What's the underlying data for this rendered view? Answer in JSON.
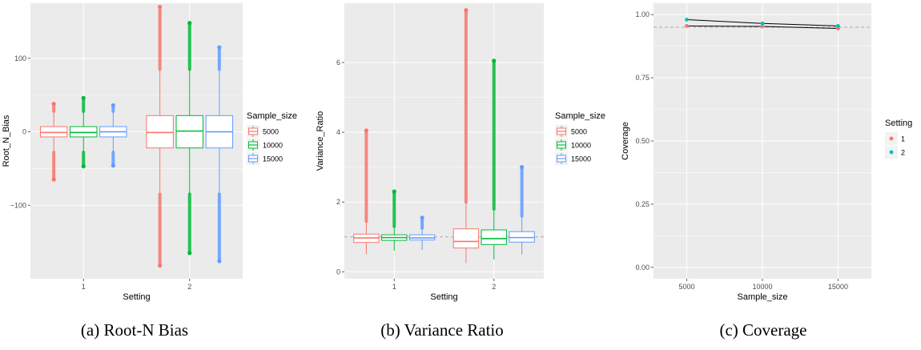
{
  "colors": {
    "panel_bg": "#EBEBEB",
    "grid": "#FFFFFF",
    "s5000": "#F8766D",
    "s10000": "#00BA38",
    "s15000": "#619CFF",
    "setting1": "#F8766D",
    "setting2": "#00BFC4",
    "ref_line": "#AAAAAA"
  },
  "chart_data": [
    {
      "type": "boxplot",
      "caption": "(a) Root-N Bias",
      "xlabel": "Setting",
      "ylabel": "Root_N_Bias",
      "categories": [
        "1",
        "2"
      ],
      "ylim": [
        -200,
        175
      ],
      "yticks": [
        -100,
        0,
        100
      ],
      "legend": {
        "title": "Sample_size",
        "position": "right",
        "items": [
          "5000",
          "10000",
          "15000"
        ]
      },
      "series": [
        {
          "name": "5000",
          "boxes": [
            {
              "category": "1",
              "q1": -7,
              "median": -1,
              "q3": 7,
              "whisker_low": -28,
              "whisker_high": 28,
              "out_low": -65,
              "out_high": 38
            },
            {
              "category": "2",
              "q1": -22,
              "median": -1,
              "q3": 22,
              "whisker_low": -85,
              "whisker_high": 85,
              "out_low": -182,
              "out_high": 170
            }
          ]
        },
        {
          "name": "10000",
          "boxes": [
            {
              "category": "1",
              "q1": -7,
              "median": -1,
              "q3": 7,
              "whisker_low": -28,
              "whisker_high": 28,
              "out_low": -47,
              "out_high": 46
            },
            {
              "category": "2",
              "q1": -22,
              "median": 1,
              "q3": 22,
              "whisker_low": -85,
              "whisker_high": 85,
              "out_low": -165,
              "out_high": 148
            }
          ]
        },
        {
          "name": "15000",
          "boxes": [
            {
              "category": "1",
              "q1": -7,
              "median": 0,
              "q3": 7,
              "whisker_low": -28,
              "whisker_high": 28,
              "out_low": -46,
              "out_high": 36
            },
            {
              "category": "2",
              "q1": -22,
              "median": 0,
              "q3": 22,
              "whisker_low": -85,
              "whisker_high": 85,
              "out_low": -176,
              "out_high": 115
            }
          ]
        }
      ]
    },
    {
      "type": "boxplot",
      "caption": "(b) Variance Ratio",
      "xlabel": "Setting",
      "ylabel": "Variance_Ratio",
      "categories": [
        "1",
        "2"
      ],
      "ylim": [
        -0.2,
        7.7
      ],
      "yticks": [
        0,
        2,
        4,
        6
      ],
      "reference_line": 1,
      "legend": {
        "title": "Sample_size",
        "position": "right",
        "items": [
          "5000",
          "10000",
          "15000"
        ]
      },
      "series": [
        {
          "name": "5000",
          "boxes": [
            {
              "category": "1",
              "q1": 0.84,
              "median": 0.97,
              "q3": 1.08,
              "whisker_low": 0.5,
              "whisker_high": 1.45,
              "out_low": null,
              "out_high": 4.05
            },
            {
              "category": "2",
              "q1": 0.68,
              "median": 0.87,
              "q3": 1.23,
              "whisker_low": 0.25,
              "whisker_high": 2.0,
              "out_low": null,
              "out_high": 7.5
            }
          ]
        },
        {
          "name": "10000",
          "boxes": [
            {
              "category": "1",
              "q1": 0.9,
              "median": 0.98,
              "q3": 1.06,
              "whisker_low": 0.6,
              "whisker_high": 1.3,
              "out_low": null,
              "out_high": 2.3
            },
            {
              "category": "2",
              "q1": 0.78,
              "median": 0.95,
              "q3": 1.2,
              "whisker_low": 0.35,
              "whisker_high": 1.8,
              "out_low": null,
              "out_high": 6.05
            }
          ]
        },
        {
          "name": "15000",
          "boxes": [
            {
              "category": "1",
              "q1": 0.91,
              "median": 0.97,
              "q3": 1.06,
              "whisker_low": 0.62,
              "whisker_high": 1.25,
              "out_low": 0.65,
              "out_high": 1.55
            },
            {
              "category": "2",
              "q1": 0.85,
              "median": 0.98,
              "q3": 1.15,
              "whisker_low": 0.5,
              "whisker_high": 1.6,
              "out_low": null,
              "out_high": 3.0
            }
          ]
        }
      ]
    },
    {
      "type": "line",
      "caption": "(c) Coverage",
      "xlabel": "Sample_size",
      "ylabel": "Coverage",
      "x": [
        5000,
        10000,
        15000
      ],
      "xlim": [
        2800,
        17200
      ],
      "ylim": [
        -0.045,
        1.045
      ],
      "yticks": [
        0.0,
        0.25,
        0.5,
        0.75,
        1.0
      ],
      "ytick_labels": [
        "0.00",
        "0.25",
        "0.50",
        "0.75",
        "1.00"
      ],
      "reference_line": 0.95,
      "legend": {
        "title": "Setting",
        "position": "right",
        "items": [
          "1",
          "2"
        ]
      },
      "series": [
        {
          "name": "1",
          "values": [
            0.955,
            0.953,
            0.945
          ]
        },
        {
          "name": "2",
          "values": [
            0.98,
            0.965,
            0.955
          ]
        }
      ]
    }
  ]
}
